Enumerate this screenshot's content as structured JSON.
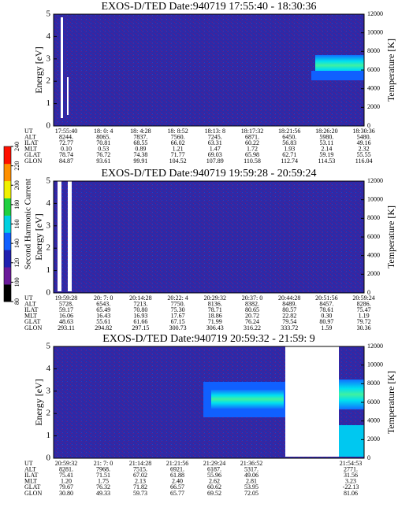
{
  "chart_data": [
    {
      "type": "spectrogram",
      "title": "EXOS-D/TED  Date:940719  17:55:40 - 18:30:36",
      "ylabel": "Energy [eV]",
      "y2label": "Temperature [K]",
      "ylim": [
        0,
        5
      ],
      "yticks": [
        0,
        1,
        2,
        3,
        4,
        5
      ],
      "y2lim": [
        0,
        12000
      ],
      "y2ticks": [
        0,
        2000,
        4000,
        6000,
        8000,
        10000,
        12000
      ],
      "table": {
        "rows": [
          {
            "label": "UT",
            "values": [
              "17:55:40",
              "18: 0: 4",
              "18: 4:28",
              "18: 8:52",
              "18:13: 8",
              "18:17:32",
              "18:21:56",
              "18:26:20",
              "18:30:36"
            ]
          },
          {
            "label": "ALT",
            "values": [
              "8244.",
              "8065.",
              "7837.",
              "7560.",
              "7245.",
              "6871.",
              "6450.",
              "5980.",
              "5480."
            ]
          },
          {
            "label": "ILAT",
            "values": [
              "72.77",
              "70.81",
              "68.55",
              "66.02",
              "63.31",
              "60.22",
              "56.83",
              "53.11",
              "49.16"
            ]
          },
          {
            "label": "MLT",
            "values": [
              "0.10",
              "0.53",
              "0.89",
              "1.21",
              "1.47",
              "1.72",
              "1.93",
              "2.14",
              "2.32"
            ]
          },
          {
            "label": "GLAT",
            "values": [
              "78.74",
              "76.72",
              "74.38",
              "71.77",
              "69.03",
              "65.98",
              "62.71",
              "59.19",
              "55.55"
            ]
          },
          {
            "label": "GLON",
            "values": [
              "84.87",
              "93.61",
              "99.91",
              "104.52",
              "107.89",
              "110.58",
              "112.74",
              "114.53",
              "116.04"
            ]
          }
        ]
      }
    },
    {
      "type": "spectrogram",
      "title": "EXOS-D/TED  Date:940719  19:59:28 - 20:59:24",
      "ylabel": "Energy [eV]",
      "y2label": "Temperature [K]",
      "ylim": [
        0,
        5
      ],
      "yticks": [
        0,
        1,
        2,
        3,
        4,
        5
      ],
      "y2lim": [
        0,
        12000
      ],
      "y2ticks": [
        0,
        2000,
        4000,
        6000,
        8000,
        10000,
        12000
      ],
      "table": {
        "rows": [
          {
            "label": "UT",
            "values": [
              "19:59:28",
              "20: 7: 0",
              "20:14:28",
              "20:22: 4",
              "20:29:32",
              "20:37: 0",
              "20:44:28",
              "20:51:56",
              "20:59:24"
            ]
          },
          {
            "label": "ALT",
            "values": [
              "5728.",
              "6543.",
              "7213.",
              "7750.",
              "8136.",
              "8382.",
              "8489.",
              "8457.",
              "8286."
            ]
          },
          {
            "label": "ILAT",
            "values": [
              "59.17",
              "65.49",
              "70.80",
              "75.30",
              "78.71",
              "80.65",
              "80.57",
              "78.61",
              "75.47"
            ]
          },
          {
            "label": "MLT",
            "values": [
              "16.06",
              "16.43",
              "16.93",
              "17.67",
              "18.86",
              "20.72",
              "22.82",
              "0.30",
              "1.19"
            ]
          },
          {
            "label": "GLAT",
            "values": [
              "48.63",
              "55.61",
              "61.66",
              "67.15",
              "71.99",
              "76.24",
              "79.54",
              "80.97",
              "79.72"
            ]
          },
          {
            "label": "GLON",
            "values": [
              "293.11",
              "294.82",
              "297.15",
              "300.73",
              "306.43",
              "316.22",
              "333.72",
              "1.59",
              "30.36"
            ]
          }
        ]
      }
    },
    {
      "type": "spectrogram",
      "title": "EXOS-D/TED  Date:940719  20:59:32 - 21:59: 9",
      "ylabel": "Energy [eV]",
      "y2label": "Temperature [K]",
      "ylim": [
        0,
        5
      ],
      "yticks": [
        0,
        1,
        2,
        3,
        4,
        5
      ],
      "y2lim": [
        0,
        12000
      ],
      "y2ticks": [
        0,
        2000,
        4000,
        6000,
        8000,
        10000,
        12000
      ],
      "table": {
        "rows": [
          {
            "label": "UT",
            "values": [
              "20:59:32",
              "21: 7: 0",
              "21:14:28",
              "21:21:56",
              "21:29:24",
              "21:36:52",
              "21:54:53"
            ]
          },
          {
            "label": "ALT",
            "values": [
              "8281.",
              "7968.",
              "7515.",
              "6921.",
              "6187.",
              "5317.",
              "2771."
            ]
          },
          {
            "label": "ILAT",
            "values": [
              "75.41",
              "71.51",
              "67.02",
              "61.88",
              "55.96",
              "49.06",
              "31.56"
            ]
          },
          {
            "label": "MLT",
            "values": [
              "1.20",
              "1.75",
              "2.13",
              "2.40",
              "2.62",
              "2.81",
              "3.23"
            ]
          },
          {
            "label": "GLAT",
            "values": [
              "79.67",
              "76.32",
              "71.82",
              "66.57",
              "60.62",
              "53.95",
              "-22.13"
            ]
          },
          {
            "label": "GLON",
            "values": [
              "30.80",
              "49.33",
              "59.73",
              "65.77",
              "69.52",
              "72.05",
              "81.06"
            ]
          }
        ]
      }
    }
  ],
  "colorbar": {
    "label": "Second Harmonic Current",
    "lim": [
      80,
      240
    ],
    "ticks": [
      80,
      100,
      120,
      140,
      160,
      180,
      200,
      220,
      240
    ],
    "colors": [
      "#000000",
      "#6a1a9a",
      "#2020b0",
      "#1060ff",
      "#00d0e0",
      "#20d040",
      "#f0f000",
      "#ff9000",
      "#ff1000"
    ]
  }
}
